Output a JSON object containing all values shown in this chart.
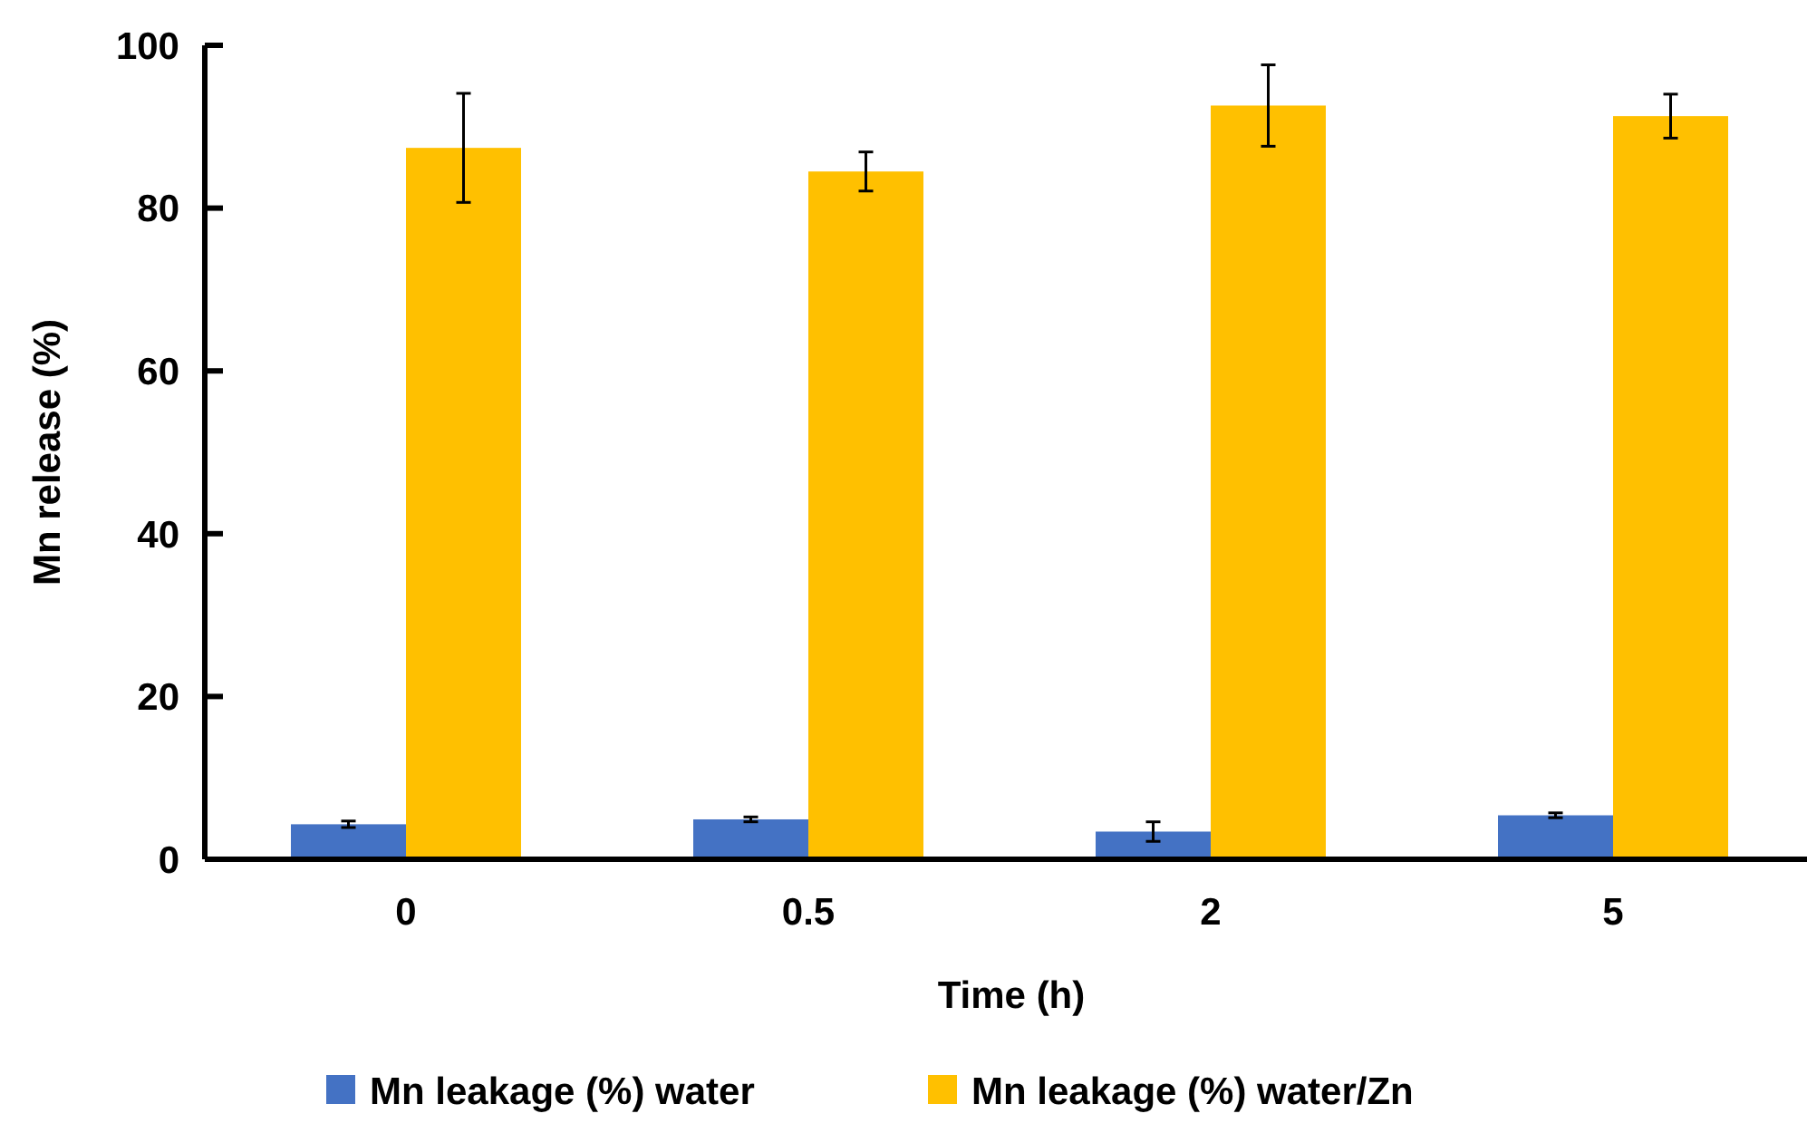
{
  "chart_data": {
    "type": "bar",
    "xlabel": "Time (h)",
    "ylabel": "Mn release (%)",
    "categories": [
      "0",
      "0.5",
      "2",
      "5"
    ],
    "series": [
      {
        "name": "Mn leakage (%) water",
        "color": "#4472c4",
        "values": [
          4.3,
          4.9,
          3.4,
          5.4
        ],
        "errors": [
          0.4,
          0.3,
          1.2,
          0.3
        ]
      },
      {
        "name": "Mn leakage (%) water/Zn",
        "color": "#ffc000",
        "values": [
          87.4,
          84.5,
          92.6,
          91.3
        ],
        "errors": [
          6.7,
          2.4,
          5.0,
          2.7
        ]
      }
    ],
    "ylim": [
      0,
      100
    ],
    "yticks": [
      0,
      20,
      40,
      60,
      80,
      100
    ],
    "grid": false,
    "legend": "bottom"
  }
}
